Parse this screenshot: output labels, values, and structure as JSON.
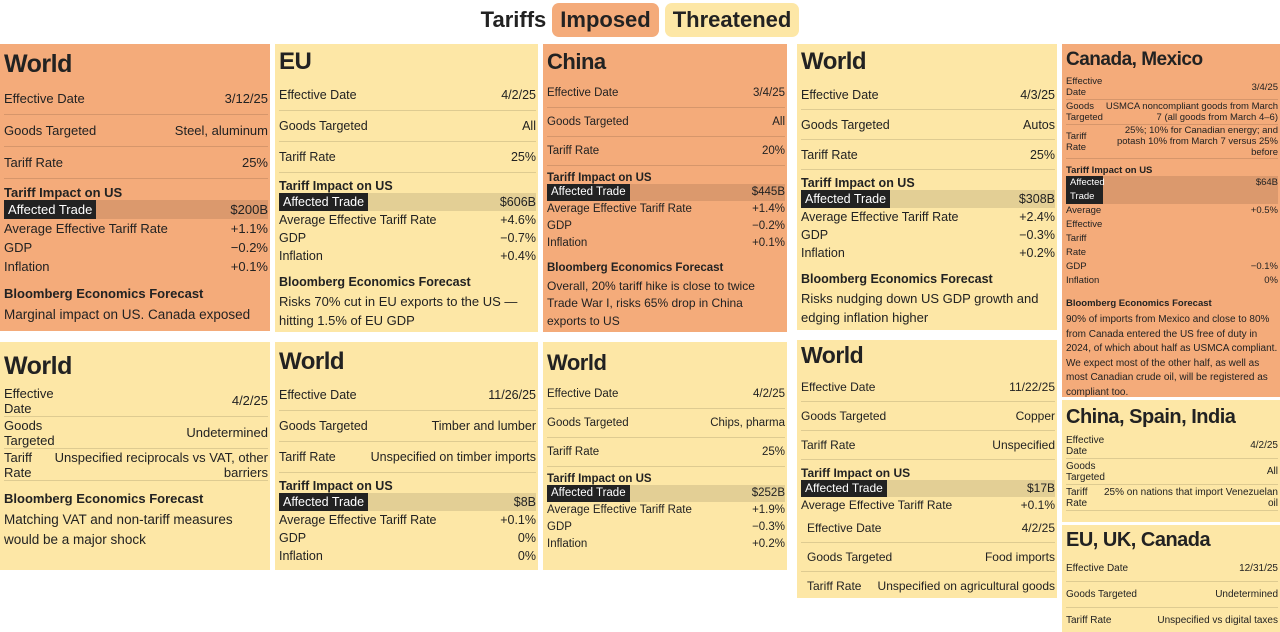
{
  "header": {
    "title": "Tariffs",
    "legend": [
      {
        "label": "Imposed",
        "color": "#f4ab7a"
      },
      {
        "label": "Threatened",
        "color": "#fde7a6"
      }
    ]
  },
  "cards": [
    {
      "title": "World",
      "color": "#f4ab7a",
      "rows": [
        {
          "label": "Effective Date",
          "value": "3/12/25"
        },
        {
          "label": "Goods Targeted",
          "value": "Steel, aluminum"
        },
        {
          "label": "Tariff Rate",
          "value": "25%"
        }
      ],
      "impact": {
        "heading": "Tariff Impact on US",
        "rows": [
          {
            "label": "Affected Trade",
            "value": "$200B"
          },
          {
            "label": "Average Effective Tariff Rate",
            "value": "+1.1%"
          },
          {
            "label": "GDP",
            "value": "−0.2%"
          },
          {
            "label": "Inflation",
            "value": "+0.1%"
          }
        ]
      },
      "forecast": {
        "heading": "Bloomberg Economics Forecast",
        "text": "Marginal impact on US. Canada exposed"
      }
    },
    {
      "title": "EU",
      "color": "#fde7a6",
      "rows": [
        {
          "label": "Effective Date",
          "value": "4/2/25"
        },
        {
          "label": "Goods Targeted",
          "value": "All"
        },
        {
          "label": "Tariff Rate",
          "value": "25%"
        }
      ],
      "impact": {
        "heading": "Tariff Impact on US",
        "rows": [
          {
            "label": "Affected Trade",
            "value": "$606B"
          },
          {
            "label": "Average Effective Tariff Rate",
            "value": "+4.6%"
          },
          {
            "label": "GDP",
            "value": "−0.7%"
          },
          {
            "label": "Inflation",
            "value": "+0.4%"
          }
        ]
      },
      "forecast": {
        "heading": "Bloomberg Economics Forecast",
        "text": "Risks 70% cut in EU exports to the US — hitting 1.5% of EU GDP"
      }
    },
    {
      "title": "China",
      "color": "#f4ab7a",
      "rows": [
        {
          "label": "Effective Date",
          "value": "3/4/25"
        },
        {
          "label": "Goods Targeted",
          "value": "All"
        },
        {
          "label": "Tariff Rate",
          "value": "20%"
        }
      ],
      "impact": {
        "heading": "Tariff Impact on US",
        "rows": [
          {
            "label": "Affected Trade",
            "value": "$445B"
          },
          {
            "label": "Average Effective Tariff Rate",
            "value": "+1.4%"
          },
          {
            "label": "GDP",
            "value": "−0.2%"
          },
          {
            "label": "Inflation",
            "value": "+0.1%"
          }
        ]
      },
      "forecast": {
        "heading": "Bloomberg Economics Forecast",
        "text": "Overall, 20% tariff hike is close to twice Trade War I, risks 65% drop in China exports to US"
      }
    },
    {
      "title": "World",
      "color": "#fde7a6",
      "rows": [
        {
          "label": "Effective Date",
          "value": "4/3/25"
        },
        {
          "label": "Goods Targeted",
          "value": "Autos"
        },
        {
          "label": "Tariff Rate",
          "value": "25%"
        }
      ],
      "impact": {
        "heading": "Tariff Impact on US",
        "rows": [
          {
            "label": "Affected Trade",
            "value": "$308B"
          },
          {
            "label": "Average Effective Tariff Rate",
            "value": "+2.4%"
          },
          {
            "label": "GDP",
            "value": "−0.3%"
          },
          {
            "label": "Inflation",
            "value": "+0.2%"
          }
        ]
      },
      "forecast": {
        "heading": "Bloomberg Economics Forecast",
        "text": "Risks nudging down US GDP growth and edging inflation higher"
      }
    },
    {
      "title": "Canada, Mexico",
      "color": "#f4ab7a",
      "rows": [
        {
          "label": "Effective Date",
          "value": "3/4/25"
        },
        {
          "label": "Goods Targeted",
          "value": "USMCA noncompliant goods from March 7 (all goods from March 4–6)"
        },
        {
          "label": "Tariff Rate",
          "value": "25%; 10% for Canadian energy; and potash 10% from March 7 versus 25% before"
        }
      ],
      "impact": {
        "heading": "Tariff Impact on US",
        "rows": [
          {
            "label": "Affected Trade",
            "value": "$64B"
          },
          {
            "label": "Average Effective Tariff Rate",
            "value": "+0.5%"
          },
          {
            "label": "GDP",
            "value": "−0.1%"
          },
          {
            "label": "Inflation",
            "value": "0%"
          }
        ]
      },
      "forecast": {
        "heading": "Bloomberg Economics Forecast",
        "text": "90% of imports from Mexico and close to 80% from Canada entered the US free of duty in 2024, of which about half as USMCA compliant. We expect most of the other half, as well as most Canadian crude oil, will be registered as compliant too."
      }
    },
    {
      "title": "World",
      "color": "#fde7a6",
      "rows": [
        {
          "label": "Effective Date",
          "value": "4/2/25"
        },
        {
          "label": "Goods Targeted",
          "value": "Undetermined"
        },
        {
          "label": "Tariff Rate",
          "value": "Unspecified reciprocals vs VAT, other barriers"
        }
      ],
      "forecast": {
        "heading": "Bloomberg Economics Forecast",
        "text": "Matching VAT and non-tariff measures would be a major shock"
      }
    },
    {
      "title": "World",
      "color": "#fde7a6",
      "rows": [
        {
          "label": "Effective Date",
          "value": "11/26/25"
        },
        {
          "label": "Goods Targeted",
          "value": "Timber and lumber"
        },
        {
          "label": "Tariff Rate",
          "value": "Unspecified on timber imports"
        }
      ],
      "impact": {
        "heading": "Tariff Impact on US",
        "rows": [
          {
            "label": "Affected Trade",
            "value": "$8B"
          },
          {
            "label": "Average Effective Tariff Rate",
            "value": "+0.1%"
          },
          {
            "label": "GDP",
            "value": "0%"
          },
          {
            "label": "Inflation",
            "value": "0%"
          }
        ]
      }
    },
    {
      "title": "World",
      "color": "#fde7a6",
      "rows": [
        {
          "label": "Effective Date",
          "value": "4/2/25"
        },
        {
          "label": "Goods Targeted",
          "value": "Chips, pharma"
        },
        {
          "label": "Tariff Rate",
          "value": "25%"
        }
      ],
      "impact": {
        "heading": "Tariff Impact on US",
        "rows": [
          {
            "label": "Affected Trade",
            "value": "$252B"
          },
          {
            "label": "Average Effective Tariff Rate",
            "value": "+1.9%"
          },
          {
            "label": "GDP",
            "value": "−0.3%"
          },
          {
            "label": "Inflation",
            "value": "+0.2%"
          }
        ]
      }
    },
    {
      "title": "World",
      "color": "#fde7a6",
      "rows": [
        {
          "label": "Effective Date",
          "value": "11/22/25"
        },
        {
          "label": "Goods Targeted",
          "value": "Copper"
        },
        {
          "label": "Tariff Rate",
          "value": "Unspecified"
        }
      ],
      "impact": {
        "heading": "Tariff Impact on US",
        "rows": [
          {
            "label": "Affected Trade",
            "value": "$17B"
          },
          {
            "label": "Average Effective Tariff Rate",
            "value": "+0.1%"
          }
        ]
      },
      "extra_rows": [
        {
          "label": "Effective Date",
          "value": "4/2/25"
        },
        {
          "label": "Goods Targeted",
          "value": "Food imports"
        },
        {
          "label": "Tariff Rate",
          "value": "Unspecified on agricultural goods"
        }
      ]
    },
    {
      "title": "China, Spain, India",
      "color": "#fde7a6",
      "rows": [
        {
          "label": "Effective Date",
          "value": "4/2/25"
        },
        {
          "label": "Goods Targeted",
          "value": "All"
        },
        {
          "label": "Tariff Rate",
          "value": "25% on nations that import Venezuelan oil"
        }
      ]
    },
    {
      "title": "EU, UK, Canada",
      "color": "#fde7a6",
      "rows": [
        {
          "label": "Effective Date",
          "value": "12/31/25"
        },
        {
          "label": "Goods Targeted",
          "value": "Undetermined"
        },
        {
          "label": "Tariff Rate",
          "value": "Unspecified vs digital taxes"
        }
      ]
    }
  ]
}
